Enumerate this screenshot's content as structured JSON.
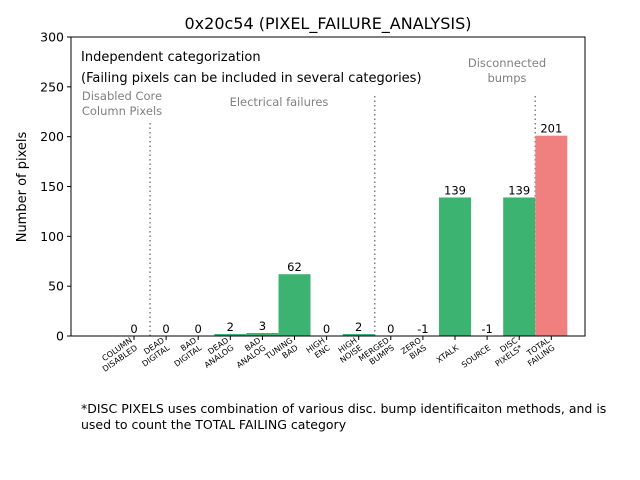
{
  "chart_data": {
    "type": "bar",
    "title": "0x20c54 (PIXEL_FAILURE_ANALYSIS)",
    "xlabel": "",
    "ylabel": "Number of pixels",
    "ylim": [
      0,
      300
    ],
    "yticks": [
      0,
      50,
      100,
      150,
      200,
      250,
      300
    ],
    "categories": [
      [
        "COLUMN",
        "DISABLED"
      ],
      [
        "DEAD",
        "DIGITAL"
      ],
      [
        "BAD",
        "DIGITAL"
      ],
      [
        "DEAD",
        "ANALOG"
      ],
      [
        "BAD",
        "ANALOG"
      ],
      [
        "TUNING",
        "BAD"
      ],
      [
        "HIGH",
        "ENC"
      ],
      [
        "HIGH",
        "NOISE"
      ],
      [
        "MERGED",
        "BUMPS"
      ],
      [
        "ZERO",
        "BIAS"
      ],
      [
        "XTALK"
      ],
      [
        "SOURCE"
      ],
      [
        "DISC",
        "PIXELS*"
      ],
      [
        "TOTAL",
        "FAILING"
      ]
    ],
    "values": [
      0,
      0,
      0,
      2,
      3,
      62,
      0,
      2,
      0,
      -1,
      139,
      -1,
      139,
      201
    ],
    "data_labels": [
      "0",
      "0",
      "0",
      "2",
      "3",
      "62",
      "0",
      "2",
      "0",
      "-1",
      "139",
      "-1",
      "139",
      "201"
    ],
    "bar_colors": [
      "#3cb371",
      "#3cb371",
      "#3cb371",
      "#3cb371",
      "#3cb371",
      "#3cb371",
      "#3cb371",
      "#3cb371",
      "#3cb371",
      "#3cb371",
      "#3cb371",
      "#3cb371",
      "#3cb371",
      "#f08080"
    ],
    "separators_after_index": [
      0,
      7,
      12
    ],
    "annotations": {
      "independent_line1": "Independent categorization",
      "independent_line2": "(Failing pixels can be included in several categories)",
      "disabled_core": [
        "Disabled Core",
        "Column Pixels"
      ],
      "electrical": "Electrical failures",
      "disconnected": [
        "Disconnected",
        "bumps"
      ]
    },
    "grid": false,
    "legend": "none"
  },
  "footnote": "*DISC PIXELS uses combination of various disc. bump identificaiton methods, and is used to count the TOTAL FAILING category",
  "colors": {
    "annotation_gray": "#808080",
    "separator": "#808080"
  }
}
